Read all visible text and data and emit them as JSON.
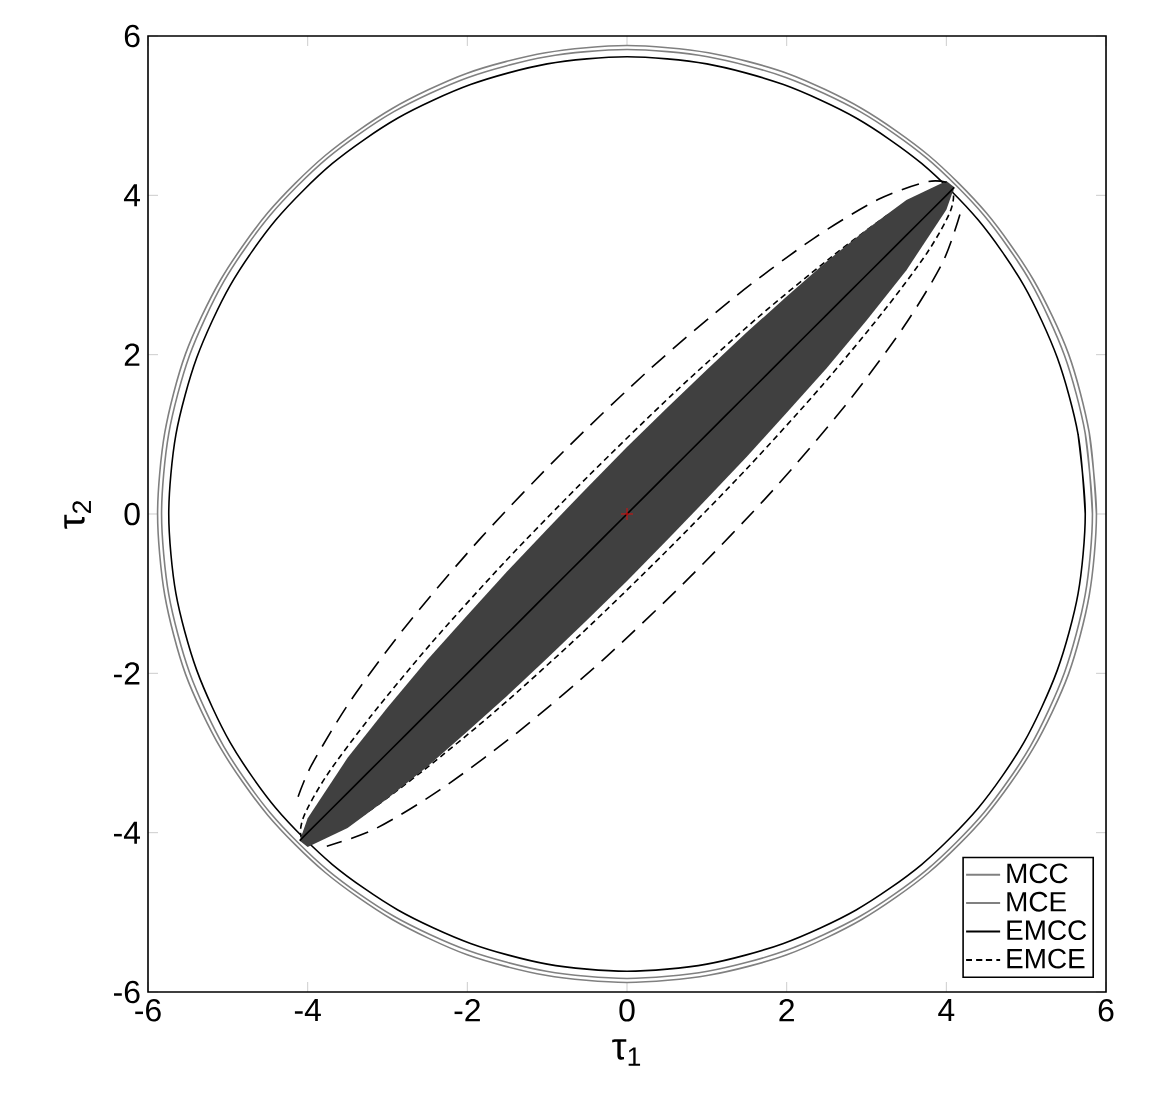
{
  "chart_data": {
    "type": "line",
    "xlabel": "τ$_{1}$",
    "ylabel": "τ$_{2}$",
    "xlim": [
      -6,
      6
    ],
    "ylim": [
      -6,
      6
    ],
    "xticks": [
      -6,
      -4,
      -2,
      0,
      2,
      4,
      6
    ],
    "yticks": [
      -6,
      -4,
      -2,
      0,
      2,
      4,
      6
    ],
    "legend": "bottom right",
    "series": [
      {
        "name": "MCC",
        "color": "#808080",
        "line_style": "solid",
        "x": [
          5.88,
          5.79,
          5.53,
          5.09,
          4.5,
          3.78,
          2.94,
          2.01,
          1.02,
          0,
          -1.02,
          -2.01,
          -2.94,
          -3.78,
          -4.5,
          -5.09,
          -5.53,
          -5.79,
          -5.88,
          -5.79,
          -5.53,
          -5.09,
          -4.5,
          -3.78,
          -2.94,
          -2.01,
          -1.02,
          0,
          1.02,
          2.01,
          2.94,
          3.78,
          4.5,
          5.09,
          5.53,
          5.79,
          5.88,
          5.79
        ],
        "values": [
          0,
          1.02,
          2.01,
          2.94,
          3.78,
          4.5,
          5.09,
          5.53,
          5.79,
          5.88,
          5.79,
          5.53,
          5.09,
          4.5,
          3.78,
          2.94,
          2.01,
          1.02,
          0,
          -1.02,
          -2.01,
          -2.94,
          -3.78,
          -4.5,
          -5.09,
          -5.53,
          -5.79,
          -5.88,
          -5.79,
          -5.53,
          -5.09,
          -4.5,
          -3.78,
          -2.94,
          -2.01,
          -1.02,
          0,
          1.02
        ]
      },
      {
        "name": "MCE",
        "color": "#808080",
        "line_style": "solid",
        "x": [
          5.83,
          5.74,
          5.48,
          5.05,
          4.47,
          3.75,
          2.92,
          1.99,
          1.01,
          0,
          -1.01,
          -1.99,
          -2.92,
          -3.75,
          -4.47,
          -5.05,
          -5.48,
          -5.74,
          -5.83,
          -5.74,
          -5.48,
          -5.05,
          -4.47,
          -3.75,
          -2.92,
          -1.99,
          -1.01,
          0,
          1.01,
          1.99,
          2.92,
          3.75,
          4.47,
          5.05,
          5.48,
          5.74,
          5.83,
          5.74
        ],
        "values": [
          0,
          1.01,
          1.99,
          2.92,
          3.75,
          4.47,
          5.05,
          5.48,
          5.74,
          5.83,
          5.74,
          5.48,
          5.05,
          4.47,
          3.75,
          2.92,
          1.99,
          1.01,
          0,
          -1.01,
          -1.99,
          -2.92,
          -3.75,
          -4.47,
          -5.05,
          -5.48,
          -5.74,
          -5.83,
          -5.74,
          -5.48,
          -5.05,
          -4.47,
          -3.75,
          -2.92,
          -1.99,
          -1.01,
          0,
          1.01
        ]
      },
      {
        "name": "EMCC",
        "color": "#000000",
        "line_style": "solid",
        "x": [
          5.74,
          5.65,
          5.39,
          4.97,
          4.4,
          3.69,
          2.87,
          1.96,
          1.0,
          0,
          -1.0,
          -1.96,
          -2.87,
          -3.69,
          -4.4,
          -4.97,
          -5.39,
          -5.65,
          -5.74,
          -5.65,
          -5.39,
          -4.97,
          -4.4,
          -3.69,
          -2.87,
          -1.96,
          -1.0,
          0,
          1.0,
          1.96,
          2.87,
          3.69,
          4.4,
          4.97,
          5.39,
          5.65,
          5.74,
          5.65
        ],
        "values": [
          0,
          1.0,
          1.96,
          2.87,
          3.69,
          4.4,
          4.97,
          5.39,
          5.65,
          5.74,
          5.65,
          5.39,
          4.97,
          4.4,
          3.69,
          2.87,
          1.96,
          1.0,
          0,
          -1.0,
          -1.96,
          -2.87,
          -3.69,
          -4.4,
          -4.97,
          -5.39,
          -5.65,
          -5.74,
          -5.65,
          -5.39,
          -4.97,
          -4.4,
          -3.69,
          -2.87,
          -1.96,
          -1.0,
          0,
          1.0
        ]
      },
      {
        "name": "EMCE",
        "color": "#000000",
        "line_style": "dotted",
        "x": [
          4.07,
          3.8,
          3.28,
          2.54,
          1.62,
          0.59,
          -0.48,
          -1.52,
          -2.45,
          -3.21,
          -3.76,
          -4.05,
          -4.07,
          -3.8,
          -3.28,
          -2.54,
          -1.62,
          -0.59,
          0.48,
          1.52,
          2.45,
          3.21,
          3.76,
          4.05,
          4.07,
          3.8
        ],
        "values": [
          4.07,
          4.05,
          3.76,
          3.21,
          2.45,
          1.52,
          0.48,
          -0.59,
          -1.62,
          -2.54,
          -3.28,
          -3.8,
          -4.07,
          -4.05,
          -3.76,
          -3.21,
          -2.45,
          -1.52,
          -0.48,
          0.59,
          1.62,
          2.54,
          3.28,
          3.8,
          4.07,
          4.05
        ]
      },
      {
        "color": "#000000",
        "line_style": "solid",
        "x": [
          -4.1,
          -4,
          -3.5,
          -3,
          -2.5,
          -2,
          -1.5,
          -1,
          -0.5,
          0,
          0.5,
          1,
          1.5,
          2,
          2.5,
          3,
          3.5,
          4,
          4.1
        ],
        "values": [
          -4.1,
          -4,
          -3.5,
          -3,
          -2.5,
          -2,
          -1.5,
          -1,
          -0.5,
          0,
          0.5,
          1,
          1.5,
          2,
          2.5,
          3,
          3.5,
          4,
          4.1
        ],
        "lower": [
          -4.1,
          -4.18,
          -3.94,
          -3.57,
          -3.17,
          -2.73,
          -2.28,
          -1.81,
          -1.33,
          -0.84,
          -0.33,
          0.19,
          0.72,
          1.27,
          1.83,
          2.43,
          3.06,
          3.82,
          4.1
        ],
        "upper": [
          -4.1,
          -3.82,
          -3.06,
          -2.43,
          -1.83,
          -1.27,
          -0.72,
          -0.19,
          0.33,
          0.84,
          1.33,
          1.81,
          2.28,
          2.73,
          3.17,
          3.57,
          3.94,
          4.18,
          4.1
        ]
      },
      {
        "color": "#000000",
        "line_style": "dashed",
        "x": [
          -4.12,
          -3.95,
          -3.46,
          -2.74,
          -1.83,
          -0.79,
          0.3,
          1.37,
          2.34,
          3.15,
          3.76,
          4.02
        ],
        "values": [
          -3.55,
          -3.15,
          -2.34,
          -1.37,
          -0.3,
          0.79,
          1.83,
          2.74,
          3.46,
          3.95,
          4.17,
          4.16
        ]
      },
      {
        "color": "#000000",
        "line_style": "dashed",
        "x": [
          4.17,
          3.95,
          3.46,
          2.74,
          1.83,
          0.79,
          -0.3,
          -1.37,
          -2.34,
          -3.15,
          -3.76
        ],
        "values": [
          3.76,
          3.15,
          2.34,
          1.37,
          0.3,
          -0.79,
          -1.83,
          -2.74,
          -3.46,
          -3.95,
          -4.17
        ]
      },
      {
        "type": "scatter",
        "color": "#ff0000",
        "marker": "cross",
        "x": [
          0
        ],
        "values": [
          0
        ]
      }
    ]
  }
}
